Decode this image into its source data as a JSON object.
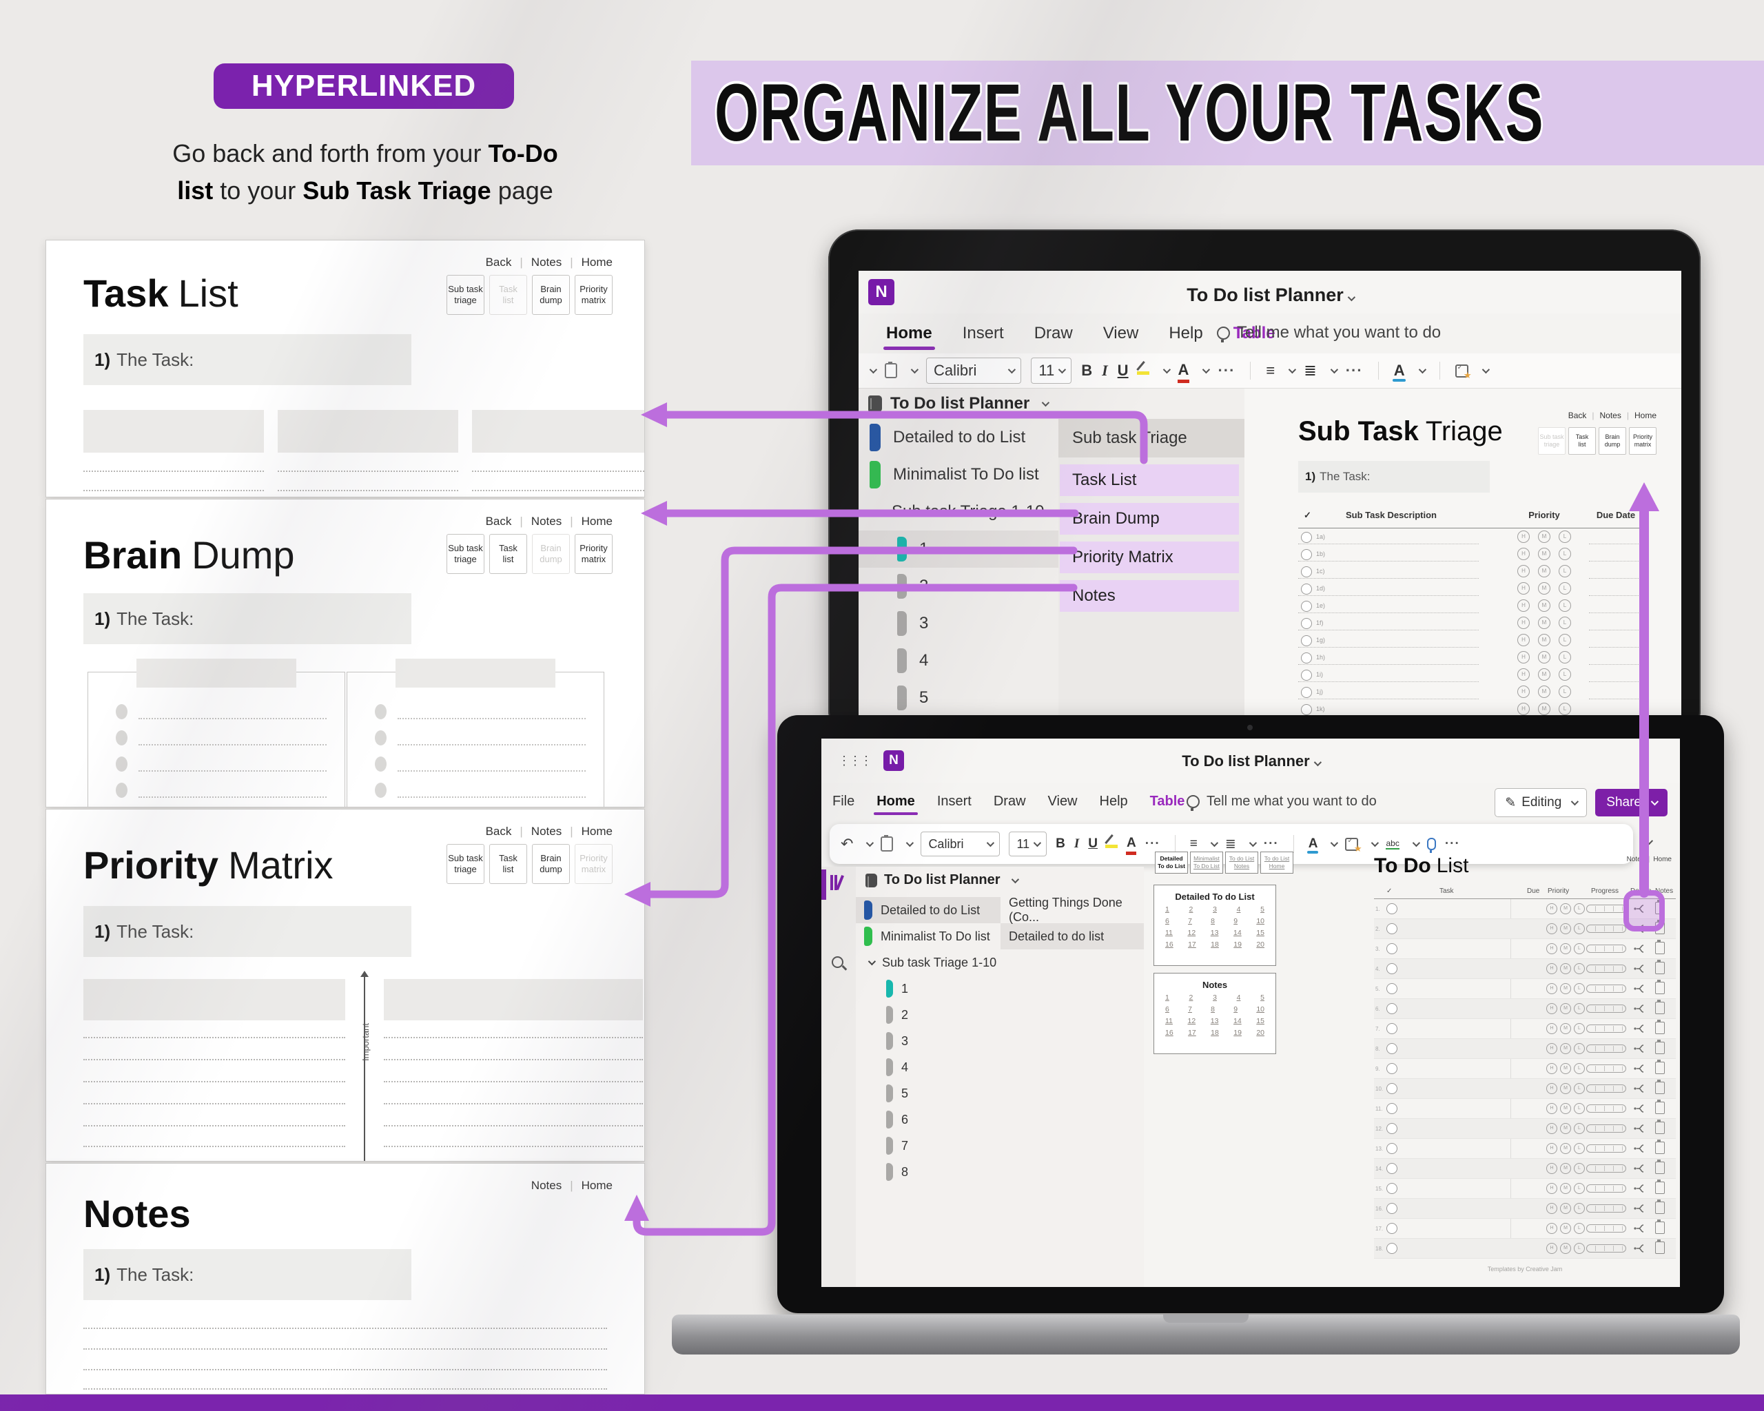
{
  "badge": "HYPERLINKED",
  "headline": "ORGANIZE ALL YOUR TASKS",
  "intro": {
    "l1_pre": "Go back and forth from your ",
    "l1_bold": "To-Do",
    "l2_bold1": "list",
    "l2_mid": " to your ",
    "l2_bold2": "Sub Task Triage",
    "l2_post": " page"
  },
  "colors": {
    "accent": "#bc6edd",
    "badge_bg": "#7b22ad",
    "banner_bg": "#dcc7eb",
    "onenote_purple": "#7719aa",
    "share_bg": "#7d1fa8",
    "section_blue": "#2456a4",
    "section_green": "#2fbf4e",
    "section_teal": "#18b7ad",
    "page_highlight": "#e9d2f4"
  },
  "planner": {
    "task_list": {
      "title_b": "Task",
      "title_l": "List",
      "nav": [
        "Back",
        "Notes",
        "Home"
      ],
      "buttons": {
        "dim": 1,
        "buttons": [
          [
            "Sub task",
            "triage"
          ],
          [
            "Task",
            "list"
          ],
          [
            "Brain",
            "dump"
          ],
          [
            "Priority",
            "matrix"
          ]
        ]
      },
      "task_label_b": "1)",
      "task_label": " The Task:"
    },
    "brain_dump": {
      "title_b": "Brain",
      "title_l": "Dump",
      "nav": [
        "Back",
        "Notes",
        "Home"
      ],
      "buttons": {
        "dim": 2,
        "buttons": [
          [
            "Sub task",
            "triage"
          ],
          [
            "Task",
            "list"
          ],
          [
            "Brain",
            "dump"
          ],
          [
            "Priority",
            "matrix"
          ]
        ]
      },
      "task_label_b": "1)",
      "task_label": " The Task:"
    },
    "priority_matrix": {
      "title_b": "Priority",
      "title_l": "Matrix",
      "nav": [
        "Back",
        "Notes",
        "Home"
      ],
      "buttons": {
        "dim": 3,
        "buttons": [
          [
            "Sub task",
            "triage"
          ],
          [
            "Task",
            "list"
          ],
          [
            "Brain",
            "dump"
          ],
          [
            "Priority",
            "matrix"
          ]
        ]
      },
      "task_label_b": "1)",
      "task_label": " The Task:",
      "axis_label": "Important"
    },
    "notes": {
      "title_b": "Notes",
      "title_l": "",
      "nav": [
        "Notes",
        "Home"
      ],
      "task_label_b": "1)",
      "task_label": " The Task:"
    }
  },
  "tablet": {
    "app_title": "To Do list Planner",
    "menu": [
      "Home",
      "Insert",
      "Draw",
      "View",
      "Help",
      "Table"
    ],
    "menu_active": "Home",
    "menu_accent": "Table",
    "tellme": "Tell me what you want to do",
    "font_name": "Calibri",
    "font_size": "11",
    "notebook": "To Do list Planner",
    "sections": [
      {
        "label": "Detailed to do List",
        "color": "blue"
      },
      {
        "label": "Minimalist To Do list",
        "color": "green"
      },
      {
        "label": "Sub task Triage 1-10",
        "chevron": true
      },
      {
        "label": "1",
        "color": "teal",
        "selected": true,
        "indent": true
      },
      {
        "label": "2",
        "indent": true
      },
      {
        "label": "3",
        "indent": true
      },
      {
        "label": "4",
        "indent": true
      },
      {
        "label": "5",
        "indent": true
      }
    ],
    "pages_header": "Sub task Triage",
    "pages": [
      "Task List",
      "Brain Dump",
      "Priority Matrix",
      "Notes"
    ],
    "page": {
      "title_b": "Sub Task",
      "title_l": "Triage",
      "nav": [
        "Back",
        "Notes",
        "Home"
      ],
      "buttons": {
        "dim": 0,
        "buttons": [
          [
            "Sub task",
            "triage"
          ],
          [
            "Task",
            "list"
          ],
          [
            "Brain",
            "dump"
          ],
          [
            "Priority",
            "matrix"
          ]
        ]
      },
      "task_label_b": "1)",
      "task_label": " The Task:",
      "headers": [
        "✓",
        "Sub Task Description",
        "Priority",
        "Due Date"
      ],
      "rows": [
        "1a)",
        "1b)",
        "1c)",
        "1d)",
        "1e)",
        "1f)",
        "1g)",
        "1h)",
        "1i)",
        "1j)",
        "1k)"
      ],
      "priority": [
        "H",
        "M",
        "L"
      ]
    }
  },
  "laptop": {
    "app_title": "To Do list Planner",
    "menu": [
      "File",
      "Home",
      "Insert",
      "Draw",
      "View",
      "Help",
      "Table"
    ],
    "menu_active": "Home",
    "menu_accent": "Table",
    "tellme": "Tell me what you want to do",
    "editing_label": "Editing",
    "share_label": "Share",
    "font_name": "Calibri",
    "font_size": "11",
    "notebook": "To Do list Planner",
    "sections": [
      {
        "label": "Detailed to do List",
        "color": "blue",
        "selected": true
      },
      {
        "label": "Minimalist To Do list",
        "color": "green"
      },
      {
        "label": "Sub task Triage 1-10",
        "chevron": true
      },
      {
        "label": "1",
        "color": "teal",
        "indent": true
      },
      {
        "label": "2",
        "indent": true
      },
      {
        "label": "3",
        "indent": true
      },
      {
        "label": "4",
        "indent": true
      },
      {
        "label": "5",
        "indent": true
      },
      {
        "label": "6",
        "indent": true
      },
      {
        "label": "7",
        "indent": true
      },
      {
        "label": "8",
        "indent": true
      }
    ],
    "pages": [
      {
        "label": "Getting Things Done (Co..."
      },
      {
        "label": "Detailed to do list",
        "selected": true
      }
    ],
    "content_tabs": [
      {
        "l1": "Detailed",
        "l2": "To do List",
        "active": true
      },
      {
        "l1": "Minimalist",
        "l2": "To Do List"
      },
      {
        "l1": "To do List",
        "l2": "Notes"
      },
      {
        "l1": "To do List",
        "l2": "Home"
      }
    ],
    "link_boxes": [
      {
        "title": "Detailed To do List",
        "rows": [
          [
            "1",
            "2",
            "3",
            "4",
            "5"
          ],
          [
            "6",
            "7",
            "8",
            "9",
            "10"
          ],
          [
            "11",
            "12",
            "13",
            "14",
            "15"
          ],
          [
            "16",
            "17",
            "18",
            "19",
            "20"
          ]
        ]
      },
      {
        "title": "Notes",
        "rows": [
          [
            "1",
            "2",
            "3",
            "4",
            "5"
          ],
          [
            "6",
            "7",
            "8",
            "9",
            "10"
          ],
          [
            "11",
            "12",
            "13",
            "14",
            "15"
          ],
          [
            "16",
            "17",
            "18",
            "19",
            "20"
          ]
        ]
      }
    ],
    "todo": {
      "title_b": "To Do",
      "title_l": "List",
      "nav": [
        "Notes",
        "Home"
      ],
      "headers": [
        "✓",
        "Task",
        "Due",
        "Priority",
        "Progress",
        "Details",
        "Notes"
      ],
      "row_count": 18,
      "priority": [
        "H",
        "M",
        "L"
      ],
      "highlight_row": 0
    },
    "footer": "Templates by Creative Jam"
  }
}
